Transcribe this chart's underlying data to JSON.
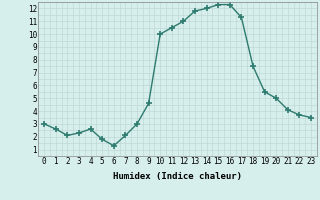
{
  "x": [
    0,
    1,
    2,
    3,
    4,
    5,
    6,
    7,
    8,
    9,
    10,
    11,
    12,
    13,
    14,
    15,
    16,
    17,
    18,
    19,
    20,
    21,
    22,
    23
  ],
  "y": [
    3.0,
    2.6,
    2.1,
    2.3,
    2.6,
    1.8,
    1.3,
    2.1,
    3.0,
    4.6,
    10.0,
    10.5,
    11.0,
    11.8,
    12.0,
    12.3,
    12.3,
    11.3,
    7.5,
    5.5,
    5.0,
    4.1,
    3.7,
    3.5
  ],
  "line_color": "#2d7a6e",
  "marker": "+",
  "marker_size": 4,
  "bg_color": "#d6efed",
  "grid_major_color": "#c0d8d5",
  "grid_minor_color": "#c0d8d5",
  "xlabel": "Humidex (Indice chaleur)",
  "xlim": [
    -0.5,
    23.5
  ],
  "ylim": [
    0.5,
    12.5
  ],
  "yticks": [
    1,
    2,
    3,
    4,
    5,
    6,
    7,
    8,
    9,
    10,
    11,
    12
  ],
  "xticks": [
    0,
    1,
    2,
    3,
    4,
    5,
    6,
    7,
    8,
    9,
    10,
    11,
    12,
    13,
    14,
    15,
    16,
    17,
    18,
    19,
    20,
    21,
    22,
    23
  ],
  "xlabel_fontsize": 6.5,
  "tick_fontsize": 5.5,
  "line_width": 1.0,
  "marker_lw": 1.2
}
